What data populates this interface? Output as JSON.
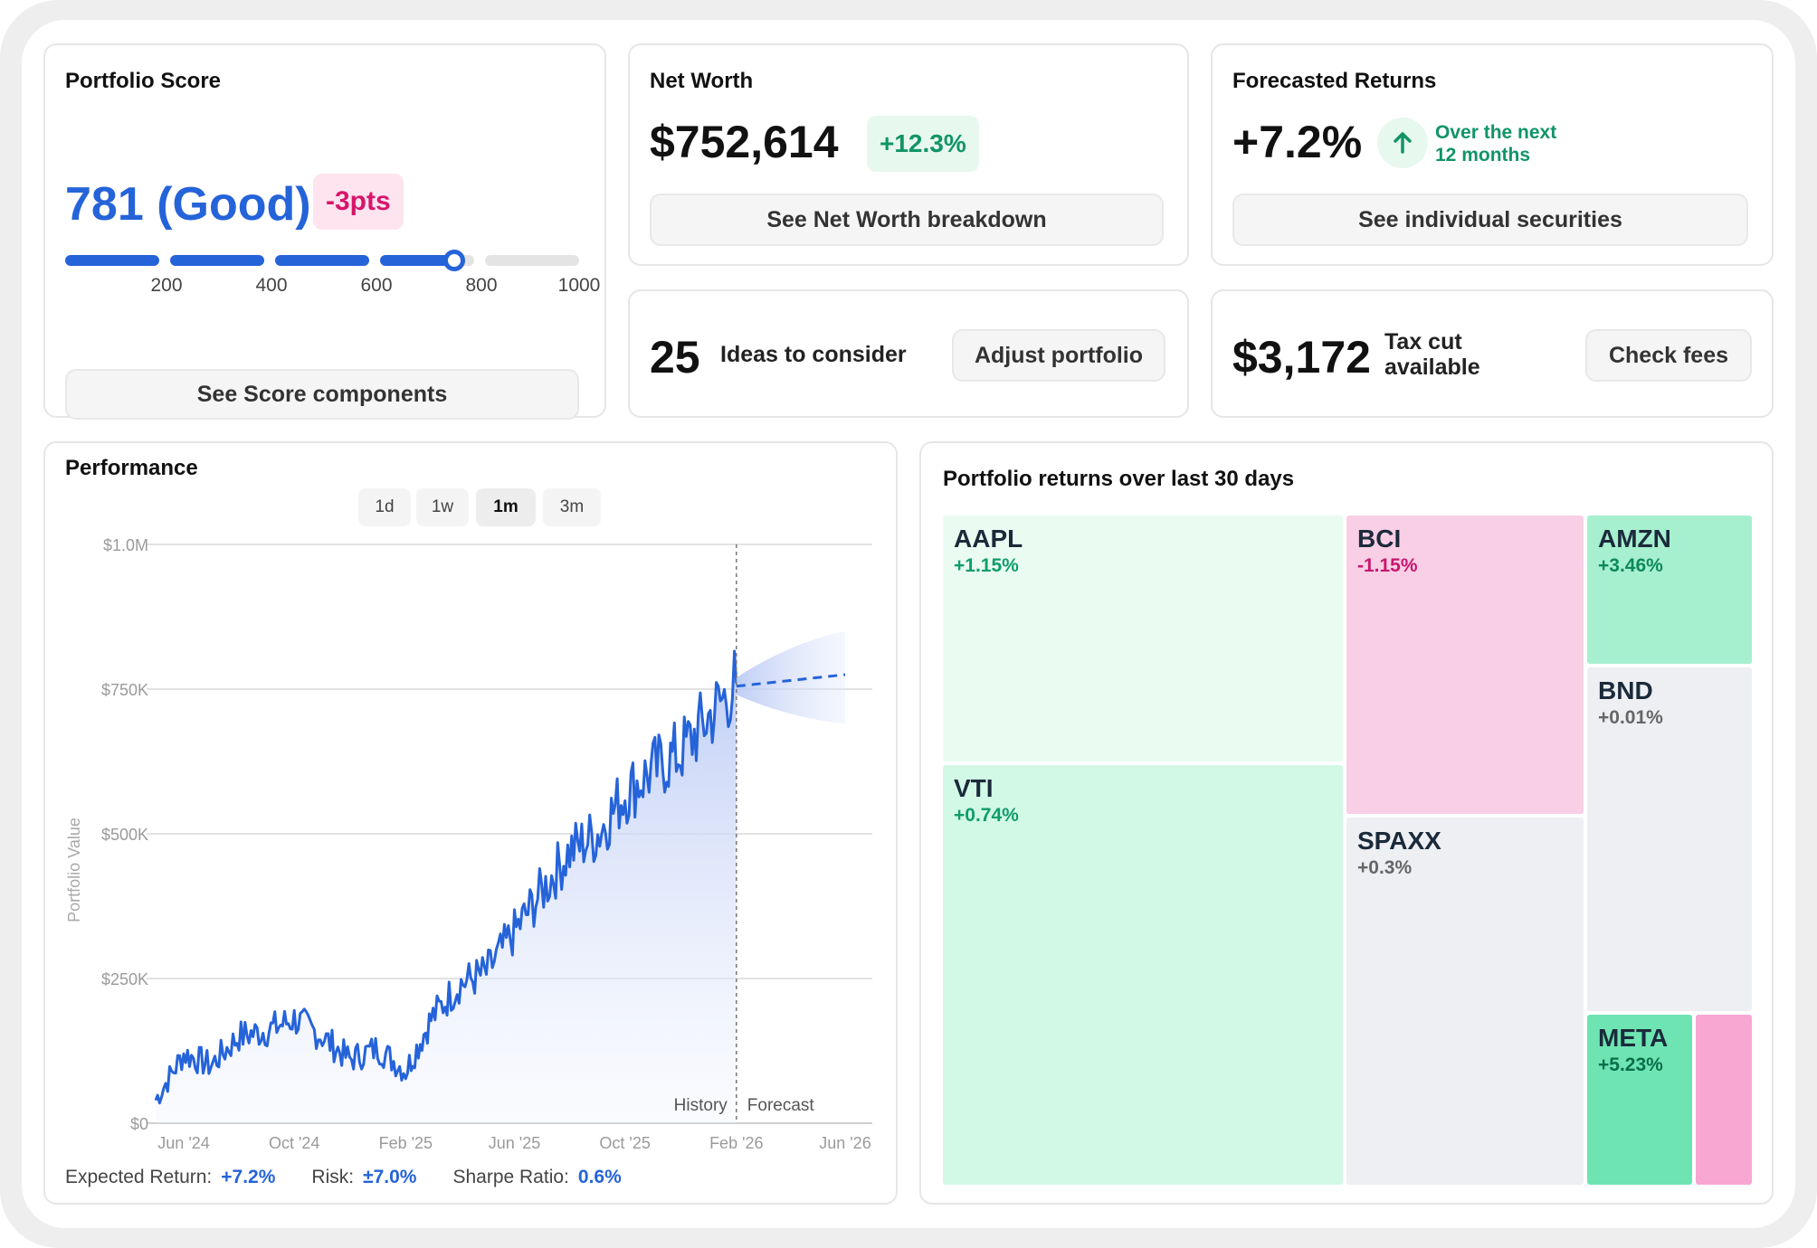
{
  "portfolio_score": {
    "title": "Portfolio Score",
    "score": "781 (Good)",
    "delta": "-3pts",
    "ticks": [
      "200",
      "400",
      "600",
      "800",
      "1000"
    ],
    "score_value": 781,
    "button": "See Score components"
  },
  "net_worth": {
    "title": "Net Worth",
    "value": "$752,614",
    "change": "+12.3%",
    "button": "See Net Worth breakdown"
  },
  "forecast": {
    "title": "Forecasted Returns",
    "value": "+7.2%",
    "note_line1": "Over the next",
    "note_line2": "12 months",
    "button": "See individual securities"
  },
  "ideas": {
    "count": "25",
    "label": "Ideas to consider",
    "button": "Adjust portfolio"
  },
  "tax": {
    "value": "$3,172",
    "label_line1": "Tax cut",
    "label_line2": "available",
    "button": "Check fees"
  },
  "performance": {
    "title": "Performance",
    "tabs": [
      "1d",
      "1w",
      "1m",
      "3m"
    ],
    "active_tab": "1m",
    "ylabel": "Portfolio Value",
    "history_label": "History",
    "forecast_label": "Forecast",
    "metrics": {
      "expected_label": "Expected Return:",
      "expected_value": "+7.2%",
      "risk_label": "Risk:",
      "risk_value": "±7.0%",
      "sharpe_label": "Sharpe Ratio:",
      "sharpe_value": "0.6%"
    }
  },
  "chart_data": {
    "type": "area",
    "title": "",
    "xlabel": "",
    "ylabel": "Portfolio Value",
    "x_ticks": [
      "Jun '24",
      "Oct '24",
      "Feb '25",
      "Jun '25",
      "Oct '25",
      "Feb '26",
      "Jun '26"
    ],
    "y_ticks": [
      "$0",
      "$250K",
      "$500K",
      "$750K",
      "$1.0M"
    ],
    "ylim": [
      0,
      1000000
    ],
    "grid": true,
    "history": {
      "x": [
        "2024-05",
        "2024-06",
        "2024-07",
        "2024-08",
        "2024-09",
        "2024-10",
        "2024-11",
        "2024-12",
        "2025-01",
        "2025-02",
        "2025-03",
        "2025-04",
        "2025-05",
        "2025-06",
        "2025-07",
        "2025-08",
        "2025-09",
        "2025-10",
        "2025-11",
        "2025-12",
        "2026-01",
        "2026-02"
      ],
      "y": [
        40000,
        120000,
        100000,
        150000,
        160000,
        180000,
        150000,
        110000,
        130000,
        90000,
        180000,
        240000,
        260000,
        330000,
        400000,
        470000,
        500000,
        570000,
        610000,
        640000,
        700000,
        760000
      ]
    },
    "forecast": {
      "x": [
        "2026-02",
        "2026-04",
        "2026-06"
      ],
      "y": [
        755000,
        765000,
        775000
      ],
      "upper": [
        770000,
        830000,
        850000
      ],
      "lower": [
        740000,
        700000,
        690000
      ]
    },
    "colors": {
      "line": "#2563d9",
      "fill": "#c7d4f5"
    }
  },
  "treemap": {
    "title": "Portfolio returns over last 30 days",
    "cells": [
      {
        "name": "AAPL",
        "pct": "+1.15%",
        "bg": "#eafbf2",
        "pct_color": "#0f9d6b"
      },
      {
        "name": "VTI",
        "pct": "+0.74%",
        "bg": "#d2f8e6",
        "pct_color": "#0f9d6b"
      },
      {
        "name": "BCI",
        "pct": "-1.15%",
        "bg": "#f9cfe6",
        "pct_color": "#c8166d"
      },
      {
        "name": "SPAXX",
        "pct": "+0.3%",
        "bg": "#edeff3",
        "pct_color": "#666"
      },
      {
        "name": "AMZN",
        "pct": "+3.46%",
        "bg": "#a6efcf",
        "pct_color": "#0c8a5b"
      },
      {
        "name": "BND",
        "pct": "+0.01%",
        "bg": "#edeff3",
        "pct_color": "#666"
      },
      {
        "name": "META",
        "pct": "+5.23%",
        "bg": "#6ee4b3",
        "pct_color": "#0a6e49"
      },
      {
        "name": "",
        "pct": "",
        "bg": "#f8a6d2",
        "pct_color": "#c8166d"
      }
    ]
  }
}
